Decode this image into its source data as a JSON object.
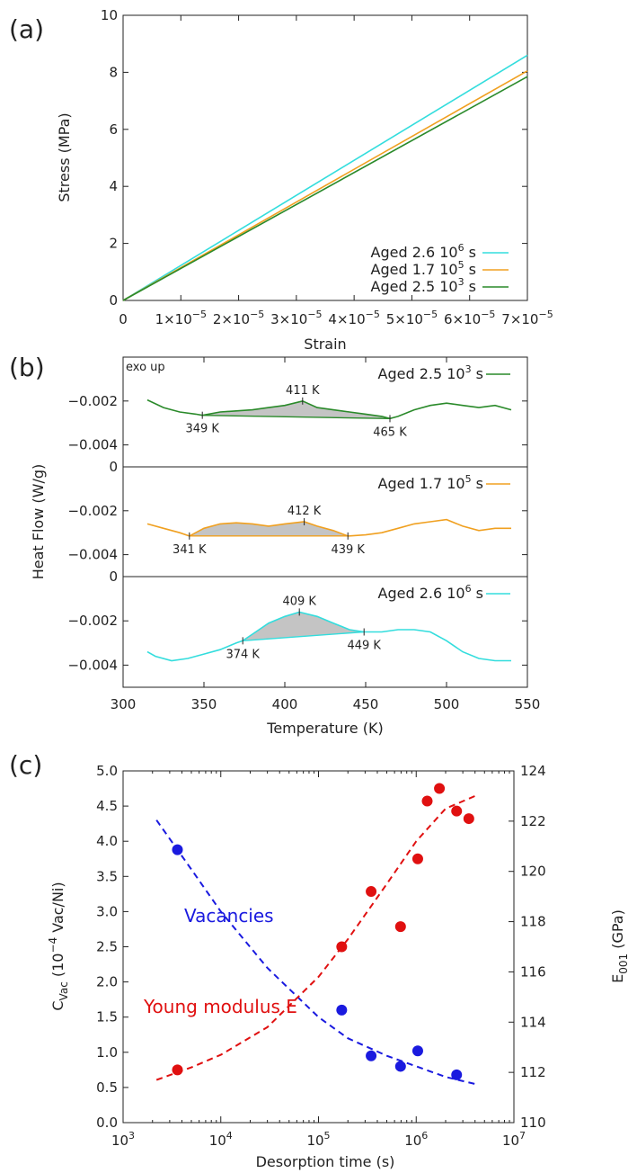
{
  "chart_data": [
    {
      "panel": "(a)",
      "type": "line",
      "xlabel": "Strain",
      "ylabel": "Stress (MPa)",
      "xlim": [
        0,
        7e-05
      ],
      "ylim": [
        0,
        10
      ],
      "x_ticks": [
        {
          "value": 0,
          "mant": "0",
          "exp": ""
        },
        {
          "value": 1e-05,
          "mant": "1×10",
          "exp": "−5"
        },
        {
          "value": 2e-05,
          "mant": "2×10",
          "exp": "−5"
        },
        {
          "value": 3e-05,
          "mant": "3×10",
          "exp": "−5"
        },
        {
          "value": 4e-05,
          "mant": "4×10",
          "exp": "−5"
        },
        {
          "value": 5e-05,
          "mant": "5×10",
          "exp": "−5"
        },
        {
          "value": 6e-05,
          "mant": "6×10",
          "exp": "−5"
        },
        {
          "value": 7e-05,
          "mant": "7×10",
          "exp": "−5"
        }
      ],
      "y_ticks": [
        {
          "value": 0,
          "label": "0"
        },
        {
          "value": 2,
          "label": "2"
        },
        {
          "value": 4,
          "label": "4"
        },
        {
          "value": 6,
          "label": "6"
        },
        {
          "value": 8,
          "label": "8"
        },
        {
          "value": 10,
          "label": "10"
        }
      ],
      "legend_position": "bottom-right",
      "series": [
        {
          "name": "Aged 2.6 10",
          "sup": "6",
          "unit": " s",
          "color": "#33dddd",
          "x": [
            0,
            7e-05
          ],
          "y": [
            0,
            8.6
          ]
        },
        {
          "name": "Aged 1.7 10",
          "sup": "5",
          "unit": " s",
          "color": "#f0a020",
          "x": [
            0,
            7e-05
          ],
          "y": [
            0,
            8.05
          ]
        },
        {
          "name": "Aged 2.5 10",
          "sup": "3",
          "unit": " s",
          "color": "#2a8a2a",
          "x": [
            0,
            7e-05
          ],
          "y": [
            0,
            7.85
          ]
        }
      ]
    },
    {
      "panel": "(b)",
      "type": "line",
      "xlabel": "Temperature (K)",
      "ylabel": "Heat Flow (W/g)",
      "xlim": [
        300,
        550
      ],
      "x_ticks": [
        {
          "value": 300,
          "label": "300"
        },
        {
          "value": 350,
          "label": "350"
        },
        {
          "value": 400,
          "label": "400"
        },
        {
          "value": 450,
          "label": "450"
        },
        {
          "value": 500,
          "label": "500"
        },
        {
          "value": 550,
          "label": "550"
        }
      ],
      "annotation": "exo up",
      "subplots": [
        {
          "name": "Aged 2.5 10",
          "sup": "3",
          "unit": " s",
          "color": "#2a8a2a",
          "ylim": [
            -0.005,
            0
          ],
          "y_ticks": [
            {
              "value": -0.002,
              "label": "−0.002"
            },
            {
              "value": -0.004,
              "label": "−0.004"
            }
          ],
          "x": [
            315,
            325,
            335,
            345,
            349,
            360,
            370,
            380,
            390,
            400,
            411,
            420,
            430,
            440,
            450,
            460,
            465,
            470,
            480,
            490,
            500,
            510,
            520,
            530,
            540
          ],
          "y": [
            -0.00195,
            -0.0023,
            -0.0025,
            -0.0026,
            -0.00265,
            -0.0025,
            -0.00245,
            -0.0024,
            -0.0023,
            -0.0022,
            -0.002,
            -0.0023,
            -0.0024,
            -0.0025,
            -0.0026,
            -0.0027,
            -0.0028,
            -0.0027,
            -0.0024,
            -0.0022,
            -0.0021,
            -0.0022,
            -0.0023,
            -0.0022,
            -0.0024
          ],
          "baseline": [
            [
              349,
              -0.00265
            ],
            [
              465,
              -0.0028
            ]
          ],
          "peaks": [
            {
              "x": 349,
              "y": -0.00265,
              "label": "349 K"
            },
            {
              "x": 411,
              "y": -0.002,
              "label": "411 K"
            },
            {
              "x": 465,
              "y": -0.0028,
              "label": "465 K"
            }
          ]
        },
        {
          "name": "Aged 1.7 10",
          "sup": "5",
          "unit": " s",
          "color": "#f0a020",
          "ylim": [
            -0.005,
            0
          ],
          "y_ticks": [
            {
              "value": 0,
              "label": "0"
            },
            {
              "value": -0.002,
              "label": "−0.002"
            },
            {
              "value": -0.004,
              "label": "−0.004"
            }
          ],
          "x": [
            315,
            325,
            335,
            341,
            350,
            360,
            370,
            380,
            390,
            400,
            412,
            420,
            430,
            439,
            450,
            460,
            470,
            480,
            490,
            500,
            510,
            520,
            530,
            540
          ],
          "y": [
            -0.0026,
            -0.0028,
            -0.003,
            -0.00315,
            -0.0028,
            -0.0026,
            -0.00255,
            -0.0026,
            -0.0027,
            -0.0026,
            -0.0025,
            -0.0027,
            -0.0029,
            -0.00315,
            -0.0031,
            -0.003,
            -0.0028,
            -0.0026,
            -0.0025,
            -0.0024,
            -0.0027,
            -0.0029,
            -0.0028,
            -0.0028
          ],
          "baseline": [
            [
              341,
              -0.00315
            ],
            [
              439,
              -0.00315
            ]
          ],
          "peaks": [
            {
              "x": 341,
              "y": -0.00315,
              "label": "341 K"
            },
            {
              "x": 412,
              "y": -0.0025,
              "label": "412 K"
            },
            {
              "x": 439,
              "y": -0.00315,
              "label": "439 K"
            }
          ]
        },
        {
          "name": "Aged 2.6 10",
          "sup": "6",
          "unit": " s",
          "color": "#33dddd",
          "ylim": [
            -0.005,
            0
          ],
          "y_ticks": [
            {
              "value": 0,
              "label": "0"
            },
            {
              "value": -0.002,
              "label": "−0.002"
            },
            {
              "value": -0.004,
              "label": "−0.004"
            }
          ],
          "x": [
            315,
            320,
            330,
            340,
            350,
            360,
            370,
            374,
            380,
            390,
            400,
            409,
            420,
            430,
            440,
            449,
            460,
            470,
            480,
            490,
            500,
            510,
            520,
            530,
            540
          ],
          "y": [
            -0.0034,
            -0.0036,
            -0.0038,
            -0.0037,
            -0.0035,
            -0.0033,
            -0.003,
            -0.0029,
            -0.0026,
            -0.0021,
            -0.0018,
            -0.0016,
            -0.0018,
            -0.0021,
            -0.0024,
            -0.0025,
            -0.0025,
            -0.0024,
            -0.0024,
            -0.0025,
            -0.0029,
            -0.0034,
            -0.0037,
            -0.0038,
            -0.0038
          ],
          "baseline": [
            [
              374,
              -0.0029
            ],
            [
              449,
              -0.0025
            ]
          ],
          "peaks": [
            {
              "x": 374,
              "y": -0.0029,
              "label": "374 K"
            },
            {
              "x": 409,
              "y": -0.0016,
              "label": "409 K"
            },
            {
              "x": 449,
              "y": -0.0025,
              "label": "449 K"
            }
          ]
        }
      ]
    },
    {
      "panel": "(c)",
      "type": "scatter",
      "xlabel": "Desorption time (s)",
      "x_scale": "log",
      "xlim": [
        1000,
        10000000
      ],
      "x_ticks": [
        {
          "value": 1000,
          "mant": "10",
          "exp": "3"
        },
        {
          "value": 10000,
          "mant": "10",
          "exp": "4"
        },
        {
          "value": 100000,
          "mant": "10",
          "exp": "5"
        },
        {
          "value": 1000000,
          "mant": "10",
          "exp": "6"
        },
        {
          "value": 10000000,
          "mant": "10",
          "exp": "7"
        }
      ],
      "ylabel_left": {
        "pre": "C",
        "sub": "Vac",
        "mid": " (10",
        "sup": "−4",
        "post": " Vac/Ni)"
      },
      "ylabel_right": {
        "pre": "E",
        "sub": "001",
        "post": " (GPa)"
      },
      "ylim_left": [
        0,
        5
      ],
      "ylim_right": [
        110,
        124
      ],
      "y_ticks_left": [
        {
          "value": 0,
          "label": "0.0"
        },
        {
          "value": 0.5,
          "label": "0.5"
        },
        {
          "value": 1,
          "label": "1.0"
        },
        {
          "value": 1.5,
          "label": "1.5"
        },
        {
          "value": 2,
          "label": "2.0"
        },
        {
          "value": 2.5,
          "label": "2.5"
        },
        {
          "value": 3,
          "label": "3.0"
        },
        {
          "value": 3.5,
          "label": "3.5"
        },
        {
          "value": 4,
          "label": "4.0"
        },
        {
          "value": 4.5,
          "label": "4.5"
        },
        {
          "value": 5,
          "label": "5.0"
        }
      ],
      "y_ticks_right": [
        {
          "value": 110,
          "label": "110"
        },
        {
          "value": 112,
          "label": "112"
        },
        {
          "value": 114,
          "label": "114"
        },
        {
          "value": 116,
          "label": "116"
        },
        {
          "value": 118,
          "label": "118"
        },
        {
          "value": 120,
          "label": "120"
        },
        {
          "value": 122,
          "label": "122"
        },
        {
          "value": 124,
          "label": "124"
        }
      ],
      "series": [
        {
          "name": "Vacancies",
          "axis": "left",
          "color": "#1a1adf",
          "points": {
            "x": [
              3600,
              172800,
              345600,
              691200,
              1036800,
              2592000
            ],
            "y": [
              3.88,
              1.6,
              0.95,
              0.8,
              1.02,
              0.68
            ]
          },
          "fit": {
            "x": [
              2200,
              5000,
              10000,
              30000,
              100000,
              200000,
              500000,
              1000000,
              2000000,
              4000000
            ],
            "y": [
              4.3,
              3.6,
              3.0,
              2.2,
              1.5,
              1.2,
              0.95,
              0.8,
              0.65,
              0.55
            ]
          }
        },
        {
          "name": "Young modulus E",
          "axis": "right",
          "color": "#e01010",
          "points": {
            "x": [
              3600,
              172800,
              345600,
              691200,
              1036800,
              1296000,
              1728000,
              2592000,
              3456000
            ],
            "y": [
              112.1,
              117.0,
              119.2,
              117.8,
              120.5,
              122.8,
              123.3,
              122.4,
              122.1
            ]
          },
          "fit": {
            "x": [
              2200,
              5000,
              10000,
              30000,
              100000,
              200000,
              500000,
              1000000,
              2000000,
              4000000
            ],
            "y": [
              111.7,
              112.2,
              112.7,
              113.8,
              115.8,
              117.3,
              119.5,
              121.2,
              122.5,
              123.0
            ]
          }
        }
      ]
    }
  ]
}
